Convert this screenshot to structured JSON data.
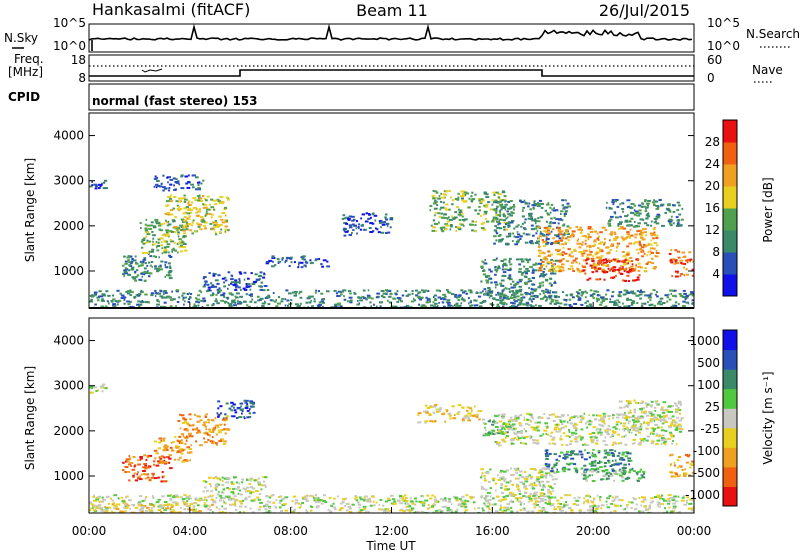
{
  "header": {
    "station": "Hankasalmi (fitACF)",
    "beam": "Beam 11",
    "date": "26/Jul/2015"
  },
  "top_panel": {
    "left_label": "N.Sky",
    "right_label": "N.Search",
    "left_ticks": [
      "10^5",
      "10^0"
    ],
    "right_ticks": [
      "10^5",
      "10^0"
    ]
  },
  "freq_panel": {
    "left_label_1": "Freq.",
    "left_label_2": "[MHz]",
    "right_label": "Nave",
    "left_ticks": [
      "18",
      "8"
    ],
    "right_ticks": [
      "60",
      "0"
    ]
  },
  "cpid": {
    "label": "CPID",
    "value": "normal (fast stereo) 153"
  },
  "colors": {
    "power": [
      "#1010e8",
      "#2850b8",
      "#3a8a6a",
      "#50a050",
      "#e8d020",
      "#f0a020",
      "#f06010",
      "#e81010"
    ],
    "velocity": [
      "#e81010",
      "#f06010",
      "#f0a020",
      "#e8d020",
      "#c8c8c0",
      "#50c840",
      "#3a8a6a",
      "#2850b8",
      "#1010e8"
    ]
  },
  "chart_data": [
    {
      "type": "heatmap",
      "title": "Power",
      "ylabel": "Slant Range [km]",
      "xlabel": "",
      "ylim": [
        180,
        4500
      ],
      "xlim": [
        0,
        24
      ],
      "yticks": [
        "1000",
        "2000",
        "3000",
        "4000"
      ],
      "colorbar_label": "Power [dB]",
      "colorbar_ticks": [
        "4",
        "8",
        "12",
        "16",
        "20",
        "24",
        "28"
      ],
      "regions": [
        {
          "t0": 0.0,
          "t1": 24.0,
          "r0": 180,
          "r1": 600,
          "level": 2
        },
        {
          "t0": 0.0,
          "t1": 0.6,
          "r0": 2850,
          "r1": 3050,
          "level": 1
        },
        {
          "t0": 1.3,
          "t1": 3.2,
          "r0": 800,
          "r1": 1400,
          "level": 2
        },
        {
          "t0": 2.0,
          "t1": 3.8,
          "r0": 1400,
          "r1": 2200,
          "level": 3
        },
        {
          "t0": 3.0,
          "t1": 5.5,
          "r0": 1800,
          "r1": 2700,
          "level": 4
        },
        {
          "t0": 2.5,
          "t1": 4.5,
          "r0": 2800,
          "r1": 3150,
          "level": 1
        },
        {
          "t0": 4.5,
          "t1": 7.0,
          "r0": 600,
          "r1": 1000,
          "level": 1
        },
        {
          "t0": 7.0,
          "t1": 9.5,
          "r0": 1100,
          "r1": 1350,
          "level": 1
        },
        {
          "t0": 10.0,
          "t1": 12.0,
          "r0": 1800,
          "r1": 2300,
          "level": 1
        },
        {
          "t0": 13.5,
          "t1": 16.5,
          "r0": 1900,
          "r1": 2800,
          "level": 3
        },
        {
          "t0": 15.5,
          "t1": 18.5,
          "r0": 400,
          "r1": 1300,
          "level": 2
        },
        {
          "t0": 16.0,
          "t1": 19.0,
          "r0": 1600,
          "r1": 2600,
          "level": 2
        },
        {
          "t0": 17.8,
          "t1": 22.5,
          "r0": 1000,
          "r1": 2000,
          "level": 5
        },
        {
          "t0": 19.5,
          "t1": 21.8,
          "r0": 800,
          "r1": 1300,
          "level": 7
        },
        {
          "t0": 20.5,
          "t1": 23.5,
          "r0": 2000,
          "r1": 2600,
          "level": 2
        },
        {
          "t0": 23.0,
          "t1": 24.0,
          "r0": 900,
          "r1": 1500,
          "level": 6
        }
      ]
    },
    {
      "type": "heatmap",
      "title": "Velocity",
      "ylabel": "Slant Range [km]",
      "xlabel": "Time UT",
      "ylim": [
        180,
        4500
      ],
      "xlim": [
        0,
        24
      ],
      "yticks": [
        "1000",
        "2000",
        "3000",
        "4000"
      ],
      "xticks": [
        "00:00",
        "04:00",
        "08:00",
        "12:00",
        "16:00",
        "20:00",
        "00:00"
      ],
      "colorbar_label": "Velocity [m s⁻¹]",
      "colorbar_ticks": [
        "1000",
        "500",
        "100",
        "25",
        "-25",
        "-100",
        "-500",
        "-1000"
      ],
      "regions": [
        {
          "t0": 0.0,
          "t1": 24.0,
          "r0": 180,
          "r1": 600,
          "level": 4
        },
        {
          "t0": 0.0,
          "t1": 5.0,
          "r0": 180,
          "r1": 400,
          "level": 3
        },
        {
          "t0": 0.0,
          "t1": 0.6,
          "r0": 2850,
          "r1": 3050,
          "level": 4
        },
        {
          "t0": 1.3,
          "t1": 3.2,
          "r0": 900,
          "r1": 1500,
          "level": 1
        },
        {
          "t0": 2.5,
          "t1": 4.0,
          "r0": 1300,
          "r1": 1900,
          "level": 2
        },
        {
          "t0": 3.5,
          "t1": 5.5,
          "r0": 1700,
          "r1": 2400,
          "level": 2
        },
        {
          "t0": 5.0,
          "t1": 6.5,
          "r0": 2300,
          "r1": 2700,
          "level": 7
        },
        {
          "t0": 4.5,
          "t1": 7.0,
          "r0": 600,
          "r1": 1000,
          "level": 4
        },
        {
          "t0": 13.0,
          "t1": 15.5,
          "r0": 2200,
          "r1": 2600,
          "level": 3
        },
        {
          "t0": 15.5,
          "t1": 16.8,
          "r0": 1900,
          "r1": 2300,
          "level": 5
        },
        {
          "t0": 16.0,
          "t1": 23.5,
          "r0": 1700,
          "r1": 2400,
          "level": 4
        },
        {
          "t0": 15.5,
          "t1": 18.5,
          "r0": 500,
          "r1": 1200,
          "level": 4
        },
        {
          "t0": 18.0,
          "t1": 21.5,
          "r0": 1100,
          "r1": 1600,
          "level": 6
        },
        {
          "t0": 19.5,
          "t1": 22.0,
          "r0": 900,
          "r1": 1200,
          "level": 5
        },
        {
          "t0": 21.0,
          "t1": 23.5,
          "r0": 2000,
          "r1": 2700,
          "level": 4
        },
        {
          "t0": 23.0,
          "t1": 24.0,
          "r0": 1000,
          "r1": 1500,
          "level": 2
        }
      ]
    }
  ]
}
